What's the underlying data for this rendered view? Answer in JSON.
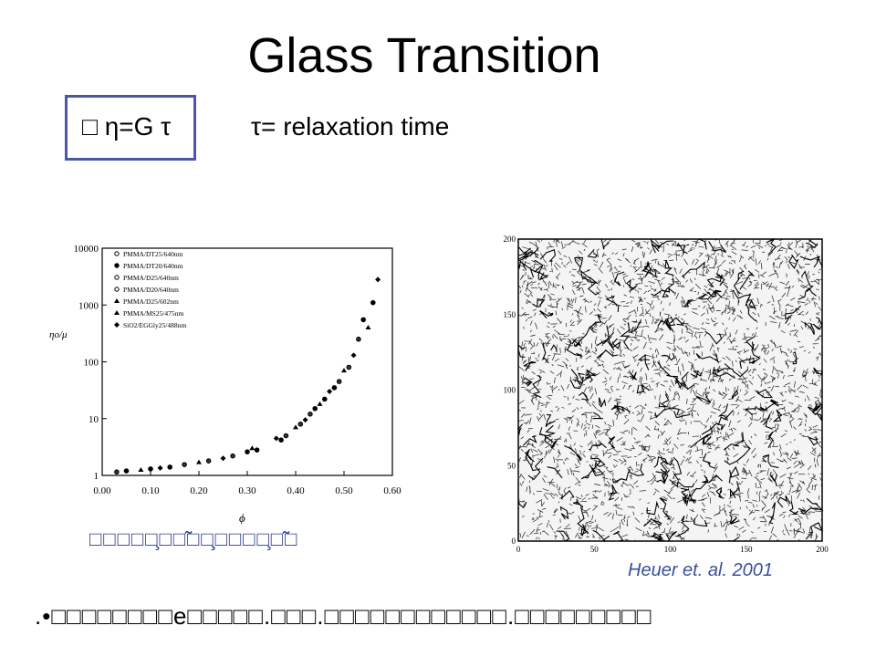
{
  "slide": {
    "title": "Glass Transition",
    "equation": "□ η=G  τ",
    "relaxation": "τ= relaxation time",
    "caption_garbled": "□□□□□̧□□̃□□̧̧□□□□̧□̃□",
    "citation": "Heuer et. al. 2001",
    "bullet_text": ".•□□□□□□□□e□□□□□.□□□.□□□□□□□□□□□□.□□□□□□□□□"
  },
  "md_plot": {
    "x_ticks": [
      "0",
      "50",
      "100",
      "150",
      "200"
    ],
    "y_ticks": [
      "0",
      "50",
      "100",
      "150",
      "200"
    ]
  },
  "chart_data": {
    "type": "scatter",
    "xlabel": "ϕ",
    "ylabel": "ηo/μ",
    "y_scale": "log",
    "xlim": [
      0.0,
      0.6
    ],
    "ylim": [
      1,
      10000
    ],
    "x_ticks": [
      "0.00",
      "0.10",
      "0.20",
      "0.30",
      "0.40",
      "0.50",
      "0.60"
    ],
    "y_ticks": [
      "1",
      "10",
      "100",
      "1000",
      "10000"
    ],
    "legend_position": "top-left",
    "legend": [
      {
        "marker": "o-open",
        "label": "PMMA/DT25/640nm"
      },
      {
        "marker": "o-filled",
        "label": "PMMA/DT20/640nm"
      },
      {
        "marker": "o-open",
        "label": "PMMA/D25/640nm"
      },
      {
        "marker": "o-open",
        "label": "PMMA/D20/640nm"
      },
      {
        "marker": "triangle",
        "label": "PMMA/D25/602nm"
      },
      {
        "marker": "triangle",
        "label": "PMMA/MS25/475nm"
      },
      {
        "marker": "diamond",
        "label": "SiO2/EGGly25/488nm"
      }
    ],
    "points": [
      {
        "x": 0.03,
        "y": 1.15
      },
      {
        "x": 0.05,
        "y": 1.2
      },
      {
        "x": 0.08,
        "y": 1.25
      },
      {
        "x": 0.1,
        "y": 1.3
      },
      {
        "x": 0.12,
        "y": 1.35
      },
      {
        "x": 0.14,
        "y": 1.4
      },
      {
        "x": 0.17,
        "y": 1.55
      },
      {
        "x": 0.2,
        "y": 1.7
      },
      {
        "x": 0.22,
        "y": 1.8
      },
      {
        "x": 0.25,
        "y": 2.0
      },
      {
        "x": 0.27,
        "y": 2.2
      },
      {
        "x": 0.3,
        "y": 2.6
      },
      {
        "x": 0.31,
        "y": 3.0
      },
      {
        "x": 0.32,
        "y": 2.8
      },
      {
        "x": 0.36,
        "y": 4.5
      },
      {
        "x": 0.37,
        "y": 4.2
      },
      {
        "x": 0.38,
        "y": 5.0
      },
      {
        "x": 0.4,
        "y": 7.0
      },
      {
        "x": 0.41,
        "y": 8.0
      },
      {
        "x": 0.42,
        "y": 9.5
      },
      {
        "x": 0.43,
        "y": 12
      },
      {
        "x": 0.44,
        "y": 15
      },
      {
        "x": 0.45,
        "y": 18
      },
      {
        "x": 0.46,
        "y": 22
      },
      {
        "x": 0.47,
        "y": 30
      },
      {
        "x": 0.48,
        "y": 35
      },
      {
        "x": 0.49,
        "y": 45
      },
      {
        "x": 0.5,
        "y": 70
      },
      {
        "x": 0.51,
        "y": 80
      },
      {
        "x": 0.52,
        "y": 130
      },
      {
        "x": 0.53,
        "y": 250
      },
      {
        "x": 0.54,
        "y": 550
      },
      {
        "x": 0.55,
        "y": 400
      },
      {
        "x": 0.56,
        "y": 1100
      },
      {
        "x": 0.57,
        "y": 2800
      }
    ]
  }
}
